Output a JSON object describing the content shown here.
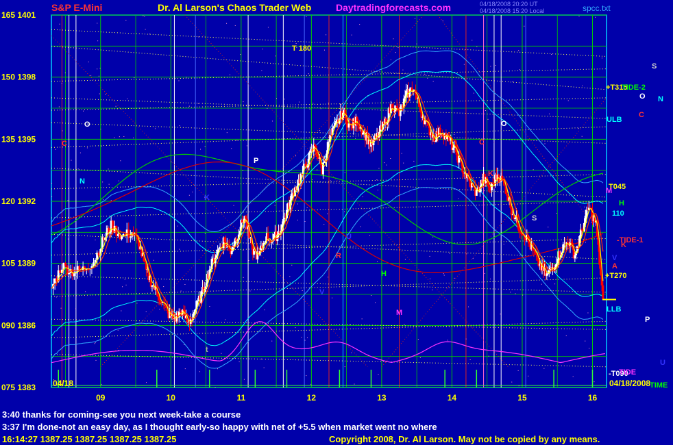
{
  "header": {
    "symbol": "S&P E-Mini",
    "site_title": "Dr. Al Larson's Chaos Trader Web",
    "site_url": "Daytradingforecasts.com",
    "stamp_line1": "04/18/2008 20:20 UT",
    "stamp_line2": "04/18/2008 15:20 Local",
    "file": "spcc.txt"
  },
  "colors": {
    "background": "#0000aa",
    "frame": "#00ccff",
    "grid": "#00cc00",
    "up_bar": "#ffffff",
    "down_bar": "#ff0000",
    "fast_ma": "#ffff00",
    "slow_ma": "#ff3300",
    "band_inner": "#00ffff",
    "band_outer": "#33aaff",
    "green_line": "#00cc00",
    "red_line": "#dd0000",
    "magenta_line": "#ff33ff",
    "dotted_line": "#ffff55"
  },
  "chart_data": {
    "type": "candlestick",
    "x_ticks": [
      "09",
      "10",
      "11",
      "12",
      "13",
      "14",
      "15",
      "16"
    ],
    "y_ticks": [
      "165 1401",
      "150 1398",
      "135 1395",
      "120 1392",
      "105 1389",
      "090 1386",
      "075 1383"
    ],
    "y_range": [
      1383,
      1401
    ],
    "x_range": [
      8.3,
      16.2
    ],
    "start_label": "04/18",
    "end_label": "04/18/2008",
    "price_path": [
      [
        8.3,
        1387.8
      ],
      [
        8.45,
        1388.9
      ],
      [
        8.6,
        1388.6
      ],
      [
        8.75,
        1388.7
      ],
      [
        8.9,
        1389.1
      ],
      [
        9.05,
        1390.2
      ],
      [
        9.15,
        1390.8
      ],
      [
        9.3,
        1390.3
      ],
      [
        9.45,
        1390.5
      ],
      [
        9.55,
        1389.9
      ],
      [
        9.65,
        1388.6
      ],
      [
        9.75,
        1387.9
      ],
      [
        9.85,
        1387.3
      ],
      [
        9.95,
        1386.6
      ],
      [
        10.05,
        1386.3
      ],
      [
        10.15,
        1386.7
      ],
      [
        10.25,
        1386.1
      ],
      [
        10.35,
        1386.8
      ],
      [
        10.45,
        1387.6
      ],
      [
        10.55,
        1388.7
      ],
      [
        10.65,
        1389.5
      ],
      [
        10.75,
        1390.1
      ],
      [
        10.85,
        1389.6
      ],
      [
        10.95,
        1390.4
      ],
      [
        11.05,
        1391.3
      ],
      [
        11.15,
        1389.7
      ],
      [
        11.25,
        1389.3
      ],
      [
        11.35,
        1390.3
      ],
      [
        11.45,
        1390.1
      ],
      [
        11.55,
        1390.6
      ],
      [
        11.65,
        1391.5
      ],
      [
        11.75,
        1392.5
      ],
      [
        11.85,
        1393.2
      ],
      [
        11.95,
        1394.0
      ],
      [
        12.05,
        1394.7
      ],
      [
        12.15,
        1393.5
      ],
      [
        12.25,
        1394.9
      ],
      [
        12.35,
        1395.7
      ],
      [
        12.45,
        1396.3
      ],
      [
        12.55,
        1395.6
      ],
      [
        12.65,
        1395.9
      ],
      [
        12.75,
        1395.3
      ],
      [
        12.85,
        1394.7
      ],
      [
        12.95,
        1395.2
      ],
      [
        13.05,
        1395.8
      ],
      [
        13.15,
        1396.7
      ],
      [
        13.25,
        1396.2
      ],
      [
        13.35,
        1397.1
      ],
      [
        13.45,
        1397.5
      ],
      [
        13.55,
        1396.4
      ],
      [
        13.65,
        1395.6
      ],
      [
        13.75,
        1395.1
      ],
      [
        13.85,
        1395.4
      ],
      [
        13.95,
        1395.0
      ],
      [
        14.05,
        1394.4
      ],
      [
        14.15,
        1393.6
      ],
      [
        14.25,
        1392.9
      ],
      [
        14.35,
        1392.4
      ],
      [
        14.45,
        1393.1
      ],
      [
        14.55,
        1392.6
      ],
      [
        14.65,
        1393.3
      ],
      [
        14.75,
        1392.8
      ],
      [
        14.85,
        1391.6
      ],
      [
        14.95,
        1390.8
      ],
      [
        15.05,
        1390.3
      ],
      [
        15.15,
        1389.6
      ],
      [
        15.25,
        1388.9
      ],
      [
        15.35,
        1388.4
      ],
      [
        15.45,
        1388.9
      ],
      [
        15.55,
        1389.6
      ],
      [
        15.65,
        1390.1
      ],
      [
        15.75,
        1389.4
      ],
      [
        15.85,
        1390.6
      ],
      [
        15.95,
        1391.7
      ],
      [
        16.05,
        1390.9
      ],
      [
        16.15,
        1387.25
      ]
    ],
    "moving_averages": {
      "fast": "yellow follows price closely",
      "slow": "red lags price"
    },
    "right_labels": [
      {
        "text": "+T315",
        "color": "#ffff00"
      },
      {
        "text": "TIDE-2",
        "color": "#00ff00"
      },
      {
        "text": "ULB",
        "color": "#00ffff"
      },
      {
        "text": "T045",
        "color": "#ffff00"
      },
      {
        "text": "H",
        "color": "#00ff00"
      },
      {
        "text": "110",
        "color": "#00ffff"
      },
      {
        "text": "-TIDE-1",
        "color": "#ff3333"
      },
      {
        "text": "A",
        "color": "#ff3333"
      },
      {
        "text": "+T270",
        "color": "#ffff00"
      },
      {
        "text": "LLB",
        "color": "#00ffff"
      },
      {
        "text": "-T090",
        "color": "#ffffff"
      },
      {
        "text": "TIDE",
        "color": "#ff33ff"
      },
      {
        "text": "TIME",
        "color": "#00ff00"
      },
      {
        "text": "S",
        "color": "#cccccc"
      },
      {
        "text": "O",
        "color": "#ffffff"
      },
      {
        "text": "N",
        "color": "#00ffff"
      },
      {
        "text": "C",
        "color": "#ff3333"
      },
      {
        "text": "P",
        "color": "#ffffff"
      },
      {
        "text": "M",
        "color": "#ff33ff"
      },
      {
        "text": "K",
        "color": "#ff3333"
      },
      {
        "text": "V",
        "color": "#3333ff"
      },
      {
        "text": "U",
        "color": "#3333ff"
      }
    ],
    "in_chart_labels": [
      {
        "text": "T 180",
        "color": "#ffff00"
      },
      {
        "text": "C",
        "color": "#ff3333"
      },
      {
        "text": "O",
        "color": "#ffffff"
      },
      {
        "text": "N",
        "color": "#00ffff"
      },
      {
        "text": "P",
        "color": "#ffffff"
      },
      {
        "text": "K",
        "color": "#3333ff"
      },
      {
        "text": "R",
        "color": "#ff3333"
      },
      {
        "text": "U",
        "color": "#3333ff"
      },
      {
        "text": "H",
        "color": "#00ff00"
      },
      {
        "text": "V",
        "color": "#3333ff"
      },
      {
        "text": "M",
        "color": "#ff33ff"
      },
      {
        "text": "O",
        "color": "#ffffff"
      },
      {
        "text": "C",
        "color": "#ff3333"
      },
      {
        "text": "K",
        "color": "#ff3333"
      },
      {
        "text": "S",
        "color": "#cccccc"
      },
      {
        "text": "t",
        "color": "#aaaaaa"
      }
    ]
  },
  "chat": {
    "line1": "3:40 thanks for coming-see you next week-take a course",
    "line2": "3:37 I'm done-not an easy day, as I thought early-so happy with net of +5.5 when market went no where"
  },
  "status": {
    "quote": "16:14:27  1387.25  1387.25  1387.25  1387.25",
    "copyright": "Copyright 2008, Dr. Al Larson. May not be copied by any means."
  }
}
